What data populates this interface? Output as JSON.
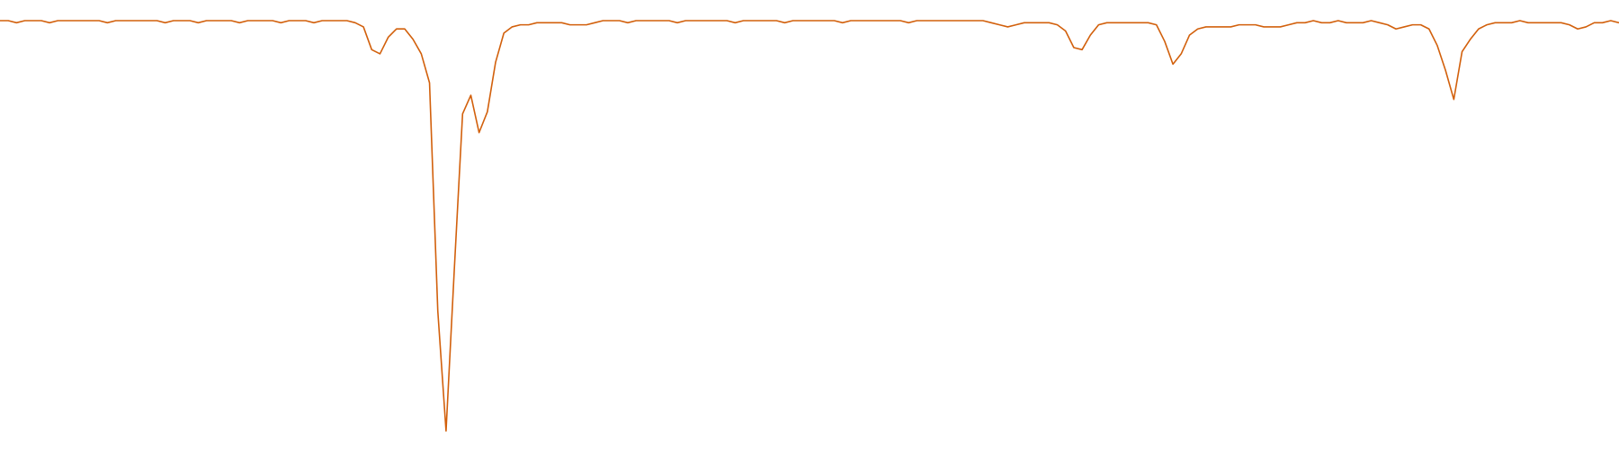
{
  "chart_data": {
    "type": "line",
    "color": "#d2600c",
    "values": [
      100,
      100,
      99.5,
      100,
      100,
      100,
      99.5,
      100,
      100,
      100,
      100,
      100,
      100,
      99.5,
      100,
      100,
      100,
      100,
      100,
      100,
      99.5,
      100,
      100,
      100,
      99.5,
      100,
      100,
      100,
      100,
      99.5,
      100,
      100,
      100,
      100,
      99.5,
      100,
      100,
      100,
      99.5,
      100,
      100,
      100,
      100,
      99.5,
      98.5,
      93,
      92,
      96,
      98,
      98,
      95.5,
      92,
      85,
      30,
      1,
      40,
      77.5,
      82,
      73,
      78,
      90,
      97,
      98.5,
      99,
      99,
      99.5,
      99.5,
      99.5,
      99.5,
      99,
      99,
      99,
      99.5,
      100,
      100,
      100,
      99.5,
      100,
      100,
      100,
      100,
      100,
      99.5,
      100,
      100,
      100,
      100,
      100,
      100,
      99.5,
      100,
      100,
      100,
      100,
      100,
      99.5,
      100,
      100,
      100,
      100,
      100,
      100,
      99.5,
      100,
      100,
      100,
      100,
      100,
      100,
      100,
      99.5,
      100,
      100,
      100,
      100,
      100,
      100,
      100,
      100,
      100,
      99.5,
      99,
      98.5,
      99,
      99.5,
      99.5,
      99.5,
      99.5,
      99,
      97.5,
      93.5,
      93,
      96.5,
      99,
      99.5,
      99.5,
      99.5,
      99.5,
      99.5,
      99.5,
      99,
      95,
      89.5,
      92,
      96.5,
      98,
      98.5,
      98.5,
      98.5,
      98.5,
      99,
      99,
      99,
      98.5,
      98.5,
      98.5,
      99,
      99.5,
      99.5,
      100,
      99.5,
      99.5,
      100,
      99.5,
      99.5,
      99.5,
      100,
      99.5,
      99,
      98,
      98.5,
      99,
      99,
      98,
      94,
      88,
      81,
      92.5,
      95.5,
      98,
      99,
      99.5,
      99.5,
      99.5,
      100,
      99.5,
      99.5,
      99.5,
      99.5,
      99.5,
      99,
      98,
      98.5,
      99.5,
      99.5,
      100,
      99.5
    ]
  }
}
